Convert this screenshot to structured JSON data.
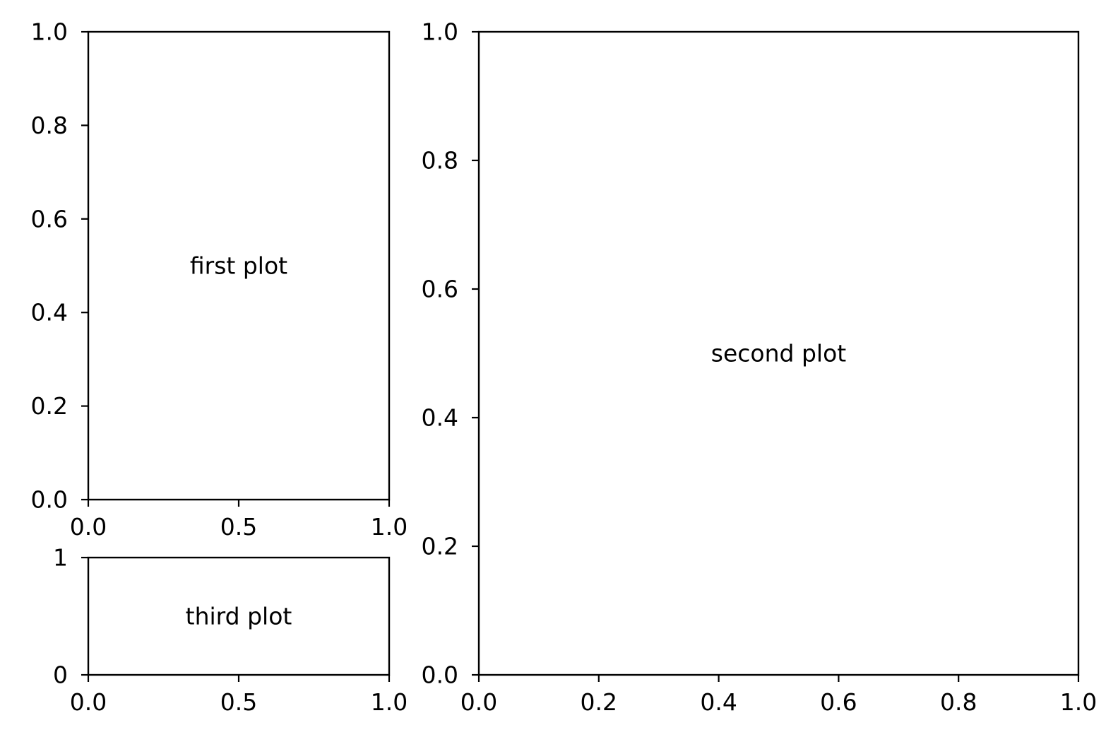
{
  "chart_data": [
    {
      "type": "scatter",
      "title": "",
      "xlabel": "",
      "ylabel": "",
      "xlim": [
        0,
        1
      ],
      "ylim": [
        0,
        1
      ],
      "x": [],
      "y": [],
      "grid": false,
      "xticks": [
        0,
        0.5,
        1
      ],
      "xtick_labels": [
        "0.0",
        "0.5",
        "1.0"
      ],
      "yticks": [
        0,
        0.2,
        0.4,
        0.6,
        0.8,
        1
      ],
      "ytick_labels": [
        "0.0",
        "0.2",
        "0.4",
        "0.6",
        "0.8",
        "1.0"
      ],
      "annotation": {
        "text": "first plot",
        "x": 0.5,
        "y": 0.5
      }
    },
    {
      "type": "scatter",
      "title": "",
      "xlabel": "",
      "ylabel": "",
      "xlim": [
        0,
        1
      ],
      "ylim": [
        0,
        1
      ],
      "x": [],
      "y": [],
      "grid": false,
      "xticks": [
        0,
        0.2,
        0.4,
        0.6,
        0.8,
        1
      ],
      "xtick_labels": [
        "0.0",
        "0.2",
        "0.4",
        "0.6",
        "0.8",
        "1.0"
      ],
      "yticks": [
        0,
        0.2,
        0.4,
        0.6,
        0.8,
        1
      ],
      "ytick_labels": [
        "0.0",
        "0.2",
        "0.4",
        "0.6",
        "0.8",
        "1.0"
      ],
      "annotation": {
        "text": "second plot",
        "x": 0.5,
        "y": 0.5
      }
    },
    {
      "type": "scatter",
      "title": "",
      "xlabel": "",
      "ylabel": "",
      "xlim": [
        0,
        1
      ],
      "ylim": [
        0,
        1
      ],
      "x": [],
      "y": [],
      "grid": false,
      "xticks": [
        0,
        0.5,
        1
      ],
      "xtick_labels": [
        "0.0",
        "0.5",
        "1.0"
      ],
      "yticks": [
        0,
        1
      ],
      "ytick_labels": [
        "0",
        "1"
      ],
      "annotation": {
        "text": "third plot",
        "x": 0.5,
        "y": 0.5
      }
    }
  ]
}
